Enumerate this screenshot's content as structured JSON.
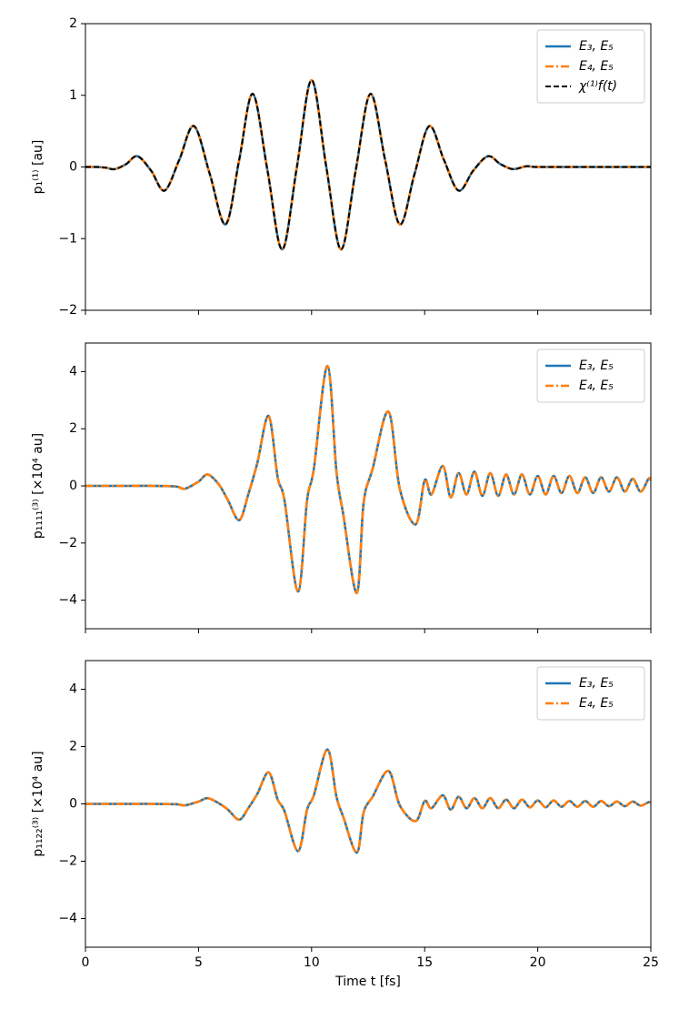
{
  "chart_data": [
    {
      "type": "line",
      "ylabel": "p₁⁽¹⁾ [au]",
      "legend": "upper right",
      "xlim": [
        0,
        25
      ],
      "ylim": [
        -2,
        2
      ],
      "yticks": [
        {
          "value": -2,
          "label": "−2"
        },
        {
          "value": -1,
          "label": "−1"
        },
        0,
        1,
        2
      ],
      "x": [
        0,
        0.5,
        0.9,
        1.3,
        1.8,
        2.3,
        2.9,
        3.5,
        4.15,
        4.8,
        5.5,
        6.2,
        6.8,
        7.4,
        8.05,
        8.7,
        9.35,
        10.0,
        10.65,
        11.3,
        11.95,
        12.6,
        13.25,
        13.9,
        14.55,
        15.2,
        15.85,
        16.5,
        17.15,
        17.8,
        18.35,
        18.9,
        19.5,
        20,
        22,
        25
      ],
      "series": [
        {
          "name": "E₃, E₅",
          "color": "#1f77b4",
          "linestyle": "solid",
          "values": [
            0,
            0,
            -0.01,
            -0.03,
            0.04,
            0.15,
            -0.05,
            -0.33,
            0.1,
            0.57,
            -0.1,
            -0.8,
            0.1,
            1.02,
            -0.05,
            -1.15,
            0,
            1.21,
            0,
            -1.15,
            -0.05,
            1.02,
            0.1,
            -0.8,
            -0.1,
            0.57,
            0.1,
            -0.33,
            -0.05,
            0.15,
            0.04,
            -0.03,
            0.01,
            0,
            0,
            0
          ]
        },
        {
          "name": "E₄, E₅",
          "color": "#ff7f0e",
          "linestyle": "dashdot",
          "values": [
            0,
            0,
            -0.01,
            -0.03,
            0.04,
            0.15,
            -0.05,
            -0.33,
            0.1,
            0.57,
            -0.1,
            -0.8,
            0.1,
            1.02,
            -0.05,
            -1.15,
            0,
            1.21,
            0,
            -1.15,
            -0.05,
            1.02,
            0.1,
            -0.8,
            -0.1,
            0.57,
            0.1,
            -0.33,
            -0.05,
            0.15,
            0.04,
            -0.03,
            0.01,
            0,
            0,
            0
          ]
        },
        {
          "name": "χ⁽¹⁾f(t)",
          "color": "#000000",
          "linestyle": "dashed",
          "values": [
            0,
            0,
            -0.01,
            -0.03,
            0.04,
            0.15,
            -0.05,
            -0.33,
            0.1,
            0.57,
            -0.1,
            -0.8,
            0.1,
            1.02,
            -0.05,
            -1.15,
            0,
            1.21,
            0,
            -1.15,
            -0.05,
            1.02,
            0.1,
            -0.8,
            -0.1,
            0.57,
            0.1,
            -0.33,
            -0.05,
            0.15,
            0.04,
            -0.03,
            0.01,
            0,
            0,
            0
          ]
        }
      ]
    },
    {
      "type": "line",
      "ylabel": "p₁₁₁₁⁽³⁾ [×10⁴ au]",
      "legend": "upper right",
      "xlim": [
        0,
        25
      ],
      "ylim": [
        -5,
        5
      ],
      "yticks": [
        {
          "value": -4,
          "label": "−4"
        },
        {
          "value": -2,
          "label": "−2"
        },
        0,
        2,
        4
      ],
      "x": [
        0,
        1,
        2,
        3,
        4,
        4.4,
        5.0,
        5.4,
        5.9,
        6.3,
        6.8,
        7.2,
        7.6,
        8.1,
        8.5,
        8.8,
        9.4,
        9.8,
        10.1,
        10.7,
        11.1,
        11.4,
        12.0,
        12.3,
        12.7,
        13.4,
        13.9,
        14.6,
        15.0,
        15.3,
        15.8,
        16.15,
        16.5,
        16.85,
        17.2,
        17.55,
        17.9,
        18.25,
        18.6,
        18.95,
        19.3,
        19.65,
        20.0,
        20.35,
        20.7,
        21.05,
        21.4,
        21.75,
        22.1,
        22.45,
        22.8,
        23.15,
        23.5,
        23.85,
        24.2,
        24.55,
        24.9,
        25
      ],
      "series": [
        {
          "name": "E₃, E₅",
          "color": "#1f77b4",
          "linestyle": "solid",
          "values": [
            0,
            0,
            0,
            0,
            -0.02,
            -0.1,
            0.15,
            0.4,
            0.05,
            -0.5,
            -1.2,
            -0.3,
            0.8,
            2.45,
            0.3,
            -0.5,
            -3.7,
            -0.5,
            0.6,
            4.2,
            0.5,
            -1.0,
            -3.75,
            -0.6,
            0.6,
            2.6,
            -0.1,
            -1.35,
            0.2,
            -0.3,
            0.7,
            -0.4,
            0.45,
            -0.3,
            0.5,
            -0.35,
            0.45,
            -0.35,
            0.4,
            -0.3,
            0.4,
            -0.3,
            0.35,
            -0.3,
            0.35,
            -0.25,
            0.35,
            -0.25,
            0.3,
            -0.25,
            0.3,
            -0.2,
            0.3,
            -0.2,
            0.25,
            -0.2,
            0.25,
            0.2
          ]
        },
        {
          "name": "E₄, E₅",
          "color": "#ff7f0e",
          "linestyle": "dashdot",
          "values": [
            0,
            0,
            0,
            0,
            -0.02,
            -0.1,
            0.15,
            0.4,
            0.05,
            -0.5,
            -1.2,
            -0.3,
            0.8,
            2.45,
            0.3,
            -0.5,
            -3.7,
            -0.5,
            0.6,
            4.2,
            0.5,
            -1.0,
            -3.75,
            -0.6,
            0.6,
            2.6,
            -0.1,
            -1.35,
            0.2,
            -0.3,
            0.7,
            -0.4,
            0.45,
            -0.3,
            0.5,
            -0.35,
            0.45,
            -0.35,
            0.4,
            -0.3,
            0.4,
            -0.3,
            0.35,
            -0.3,
            0.35,
            -0.25,
            0.35,
            -0.25,
            0.3,
            -0.25,
            0.3,
            -0.2,
            0.3,
            -0.2,
            0.25,
            -0.2,
            0.25,
            0.2
          ]
        }
      ]
    },
    {
      "type": "line",
      "ylabel": "p₁₁₂₂⁽³⁾ [×10⁴ au]",
      "xlabel": "Time t [fs]",
      "legend": "upper right",
      "xlim": [
        0,
        25
      ],
      "ylim": [
        -5,
        5
      ],
      "xticks": [
        0,
        5,
        10,
        15,
        20,
        25
      ],
      "yticks": [
        {
          "value": -4,
          "label": "−4"
        },
        {
          "value": -2,
          "label": "−2"
        },
        0,
        2,
        4
      ],
      "x": [
        0,
        1,
        2,
        3,
        4,
        4.4,
        5.0,
        5.4,
        5.9,
        6.3,
        6.8,
        7.2,
        7.6,
        8.1,
        8.5,
        8.8,
        9.4,
        9.8,
        10.1,
        10.7,
        11.1,
        11.4,
        12.0,
        12.3,
        12.7,
        13.4,
        13.9,
        14.6,
        15.0,
        15.3,
        15.8,
        16.15,
        16.5,
        16.85,
        17.2,
        17.55,
        17.9,
        18.25,
        18.6,
        18.95,
        19.3,
        19.65,
        20.0,
        20.35,
        20.7,
        21.05,
        21.4,
        21.75,
        22.1,
        22.45,
        22.8,
        23.15,
        23.5,
        23.85,
        24.2,
        24.55,
        24.9,
        25
      ],
      "series": [
        {
          "name": "E₃, E₅",
          "color": "#1f77b4",
          "linestyle": "solid",
          "values": [
            0,
            0,
            0,
            0,
            -0.01,
            -0.05,
            0.08,
            0.2,
            0.02,
            -0.2,
            -0.55,
            -0.15,
            0.35,
            1.1,
            0.15,
            -0.25,
            -1.65,
            -0.2,
            0.3,
            1.9,
            0.25,
            -0.45,
            -1.7,
            -0.3,
            0.25,
            1.15,
            -0.05,
            -0.6,
            0.1,
            -0.15,
            0.3,
            -0.2,
            0.25,
            -0.15,
            0.2,
            -0.15,
            0.2,
            -0.15,
            0.15,
            -0.15,
            0.15,
            -0.12,
            0.12,
            -0.12,
            0.12,
            -0.1,
            0.1,
            -0.1,
            0.1,
            -0.1,
            0.1,
            -0.08,
            0.08,
            -0.08,
            0.08,
            -0.06,
            0.06,
            0.04
          ]
        },
        {
          "name": "E₄, E₅",
          "color": "#ff7f0e",
          "linestyle": "dashdot",
          "values": [
            0,
            0,
            0,
            0,
            -0.01,
            -0.05,
            0.08,
            0.2,
            0.02,
            -0.2,
            -0.55,
            -0.15,
            0.35,
            1.1,
            0.15,
            -0.25,
            -1.65,
            -0.2,
            0.3,
            1.9,
            0.25,
            -0.45,
            -1.7,
            -0.3,
            0.25,
            1.15,
            -0.05,
            -0.6,
            0.1,
            -0.15,
            0.3,
            -0.2,
            0.25,
            -0.15,
            0.2,
            -0.15,
            0.2,
            -0.15,
            0.15,
            -0.15,
            0.15,
            -0.12,
            0.12,
            -0.12,
            0.12,
            -0.1,
            0.1,
            -0.1,
            0.1,
            -0.1,
            0.1,
            -0.08,
            0.08,
            -0.08,
            0.08,
            -0.06,
            0.06,
            0.04
          ]
        }
      ]
    }
  ]
}
